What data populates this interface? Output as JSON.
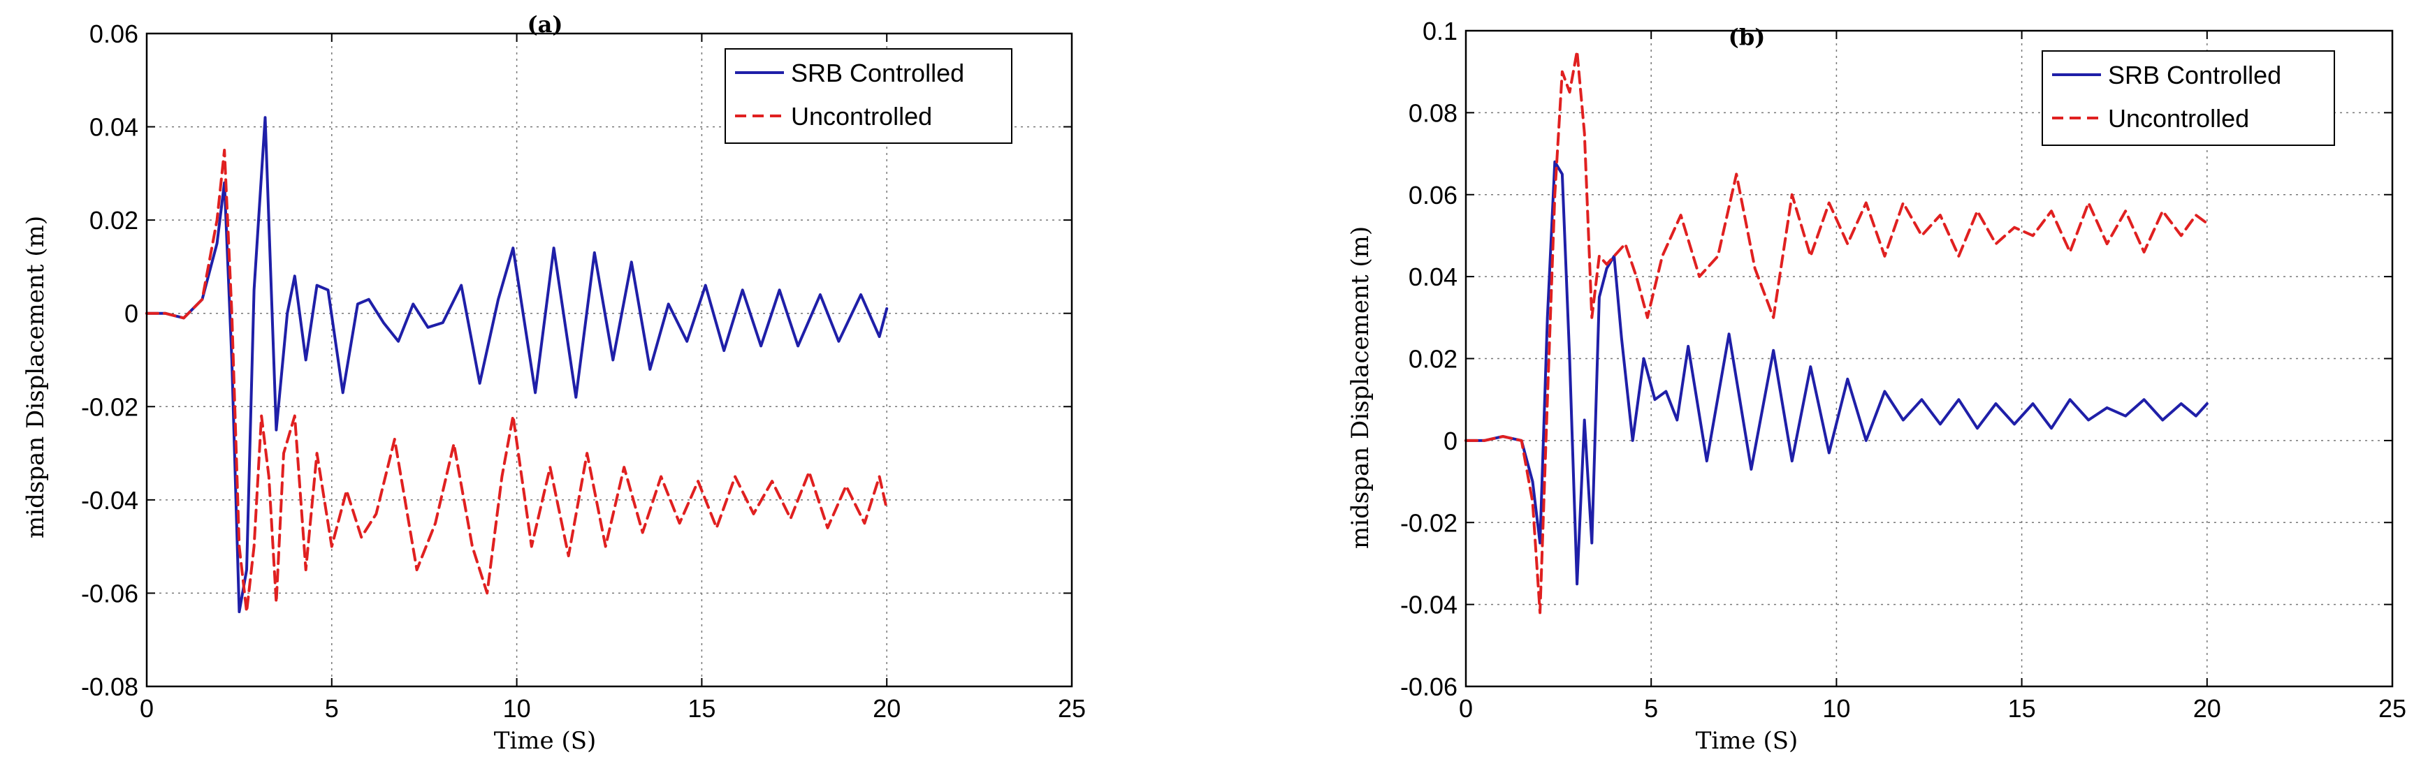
{
  "chart_data": [
    {
      "type": "line",
      "title": "(a)",
      "xlabel": "Time (S)",
      "ylabel": "midspan Displacement (m)",
      "xlim": [
        0,
        25
      ],
      "ylim": [
        -0.08,
        0.06
      ],
      "xticks": [
        0,
        5,
        10,
        15,
        20,
        25
      ],
      "yticks": [
        -0.08,
        -0.06,
        -0.04,
        -0.02,
        0,
        0.02,
        0.04,
        0.06
      ],
      "xtick_labels": [
        "0",
        "5",
        "10",
        "15",
        "20",
        "25"
      ],
      "ytick_labels": [
        "-0.08",
        "-0.06",
        "-0.04",
        "-0.02",
        "0",
        "0.02",
        "0.04",
        "0.06"
      ],
      "grid": true,
      "legend_position": "top-right",
      "series": [
        {
          "name": "SRB Controlled",
          "color": "#1f1fa8",
          "style": "solid",
          "points": [
            [
              0,
              0
            ],
            [
              0.5,
              0
            ],
            [
              1,
              -0.001
            ],
            [
              1.5,
              0.003
            ],
            [
              1.9,
              0.015
            ],
            [
              2.1,
              0.028
            ],
            [
              2.3,
              -0.01
            ],
            [
              2.5,
              -0.064
            ],
            [
              2.7,
              -0.055
            ],
            [
              2.9,
              0.005
            ],
            [
              3.2,
              0.042
            ],
            [
              3.5,
              -0.025
            ],
            [
              3.8,
              0
            ],
            [
              4.0,
              0.008
            ],
            [
              4.3,
              -0.01
            ],
            [
              4.6,
              0.006
            ],
            [
              4.9,
              0.005
            ],
            [
              5.3,
              -0.017
            ],
            [
              5.7,
              0.002
            ],
            [
              6.0,
              0.003
            ],
            [
              6.4,
              -0.002
            ],
            [
              6.8,
              -0.006
            ],
            [
              7.2,
              0.002
            ],
            [
              7.6,
              -0.003
            ],
            [
              8.0,
              -0.002
            ],
            [
              8.5,
              0.006
            ],
            [
              9.0,
              -0.015
            ],
            [
              9.5,
              0.003
            ],
            [
              9.9,
              0.014
            ],
            [
              10.5,
              -0.017
            ],
            [
              11.0,
              0.014
            ],
            [
              11.6,
              -0.018
            ],
            [
              12.1,
              0.013
            ],
            [
              12.6,
              -0.01
            ],
            [
              13.1,
              0.011
            ],
            [
              13.6,
              -0.012
            ],
            [
              14.1,
              0.002
            ],
            [
              14.6,
              -0.006
            ],
            [
              15.1,
              0.006
            ],
            [
              15.6,
              -0.008
            ],
            [
              16.1,
              0.005
            ],
            [
              16.6,
              -0.007
            ],
            [
              17.1,
              0.005
            ],
            [
              17.6,
              -0.007
            ],
            [
              18.2,
              0.004
            ],
            [
              18.7,
              -0.006
            ],
            [
              19.3,
              0.004
            ],
            [
              19.8,
              -0.005
            ],
            [
              20,
              0.001
            ]
          ]
        },
        {
          "name": "Uncontrolled",
          "color": "#e02020",
          "style": "dashed",
          "points": [
            [
              0,
              0
            ],
            [
              0.5,
              0
            ],
            [
              1,
              -0.001
            ],
            [
              1.5,
              0.003
            ],
            [
              1.9,
              0.02
            ],
            [
              2.1,
              0.035
            ],
            [
              2.3,
              0
            ],
            [
              2.5,
              -0.05
            ],
            [
              2.7,
              -0.064
            ],
            [
              2.9,
              -0.05
            ],
            [
              3.1,
              -0.022
            ],
            [
              3.3,
              -0.035
            ],
            [
              3.5,
              -0.062
            ],
            [
              3.7,
              -0.03
            ],
            [
              4.0,
              -0.022
            ],
            [
              4.3,
              -0.055
            ],
            [
              4.6,
              -0.03
            ],
            [
              5.0,
              -0.05
            ],
            [
              5.4,
              -0.038
            ],
            [
              5.8,
              -0.048
            ],
            [
              6.2,
              -0.043
            ],
            [
              6.7,
              -0.027
            ],
            [
              7.3,
              -0.055
            ],
            [
              7.8,
              -0.045
            ],
            [
              8.3,
              -0.028
            ],
            [
              8.8,
              -0.05
            ],
            [
              9.2,
              -0.06
            ],
            [
              9.6,
              -0.035
            ],
            [
              9.9,
              -0.022
            ],
            [
              10.4,
              -0.05
            ],
            [
              10.9,
              -0.033
            ],
            [
              11.4,
              -0.052
            ],
            [
              11.9,
              -0.03
            ],
            [
              12.4,
              -0.05
            ],
            [
              12.9,
              -0.033
            ],
            [
              13.4,
              -0.047
            ],
            [
              13.9,
              -0.035
            ],
            [
              14.4,
              -0.045
            ],
            [
              14.9,
              -0.036
            ],
            [
              15.4,
              -0.046
            ],
            [
              15.9,
              -0.035
            ],
            [
              16.4,
              -0.043
            ],
            [
              16.9,
              -0.036
            ],
            [
              17.4,
              -0.044
            ],
            [
              17.9,
              -0.034
            ],
            [
              18.4,
              -0.046
            ],
            [
              18.9,
              -0.037
            ],
            [
              19.4,
              -0.045
            ],
            [
              19.8,
              -0.035
            ],
            [
              20,
              -0.042
            ]
          ]
        }
      ]
    },
    {
      "type": "line",
      "title": "(b)",
      "xlabel": "Time (S)",
      "ylabel": "midspan Displacement (m)",
      "xlim": [
        0,
        25
      ],
      "ylim": [
        -0.06,
        0.1
      ],
      "xticks": [
        0,
        5,
        10,
        15,
        20,
        25
      ],
      "yticks": [
        -0.06,
        -0.04,
        -0.02,
        0,
        0.02,
        0.04,
        0.06,
        0.08,
        0.1
      ],
      "xtick_labels": [
        "0",
        "5",
        "10",
        "15",
        "20",
        "25"
      ],
      "ytick_labels": [
        "-0.06",
        "-0.04",
        "-0.02",
        "0",
        "0.02",
        "0.04",
        "0.06",
        "0.08",
        "0.1"
      ],
      "grid": true,
      "legend_position": "top-right",
      "series": [
        {
          "name": "SRB Controlled",
          "color": "#1f1fa8",
          "style": "solid",
          "points": [
            [
              0,
              0
            ],
            [
              0.5,
              0
            ],
            [
              1,
              0.001
            ],
            [
              1.5,
              0
            ],
            [
              1.8,
              -0.01
            ],
            [
              2.0,
              -0.025
            ],
            [
              2.2,
              0.03
            ],
            [
              2.4,
              0.068
            ],
            [
              2.6,
              0.065
            ],
            [
              2.8,
              0.02
            ],
            [
              3.0,
              -0.035
            ],
            [
              3.2,
              0.005
            ],
            [
              3.4,
              -0.025
            ],
            [
              3.6,
              0.035
            ],
            [
              3.8,
              0.042
            ],
            [
              4.0,
              0.045
            ],
            [
              4.2,
              0.025
            ],
            [
              4.5,
              0
            ],
            [
              4.8,
              0.02
            ],
            [
              5.1,
              0.01
            ],
            [
              5.4,
              0.012
            ],
            [
              5.7,
              0.005
            ],
            [
              6.0,
              0.023
            ],
            [
              6.5,
              -0.005
            ],
            [
              7.1,
              0.026
            ],
            [
              7.7,
              -0.007
            ],
            [
              8.3,
              0.022
            ],
            [
              8.8,
              -0.005
            ],
            [
              9.3,
              0.018
            ],
            [
              9.8,
              -0.003
            ],
            [
              10.3,
              0.015
            ],
            [
              10.8,
              0
            ],
            [
              11.3,
              0.012
            ],
            [
              11.8,
              0.005
            ],
            [
              12.3,
              0.01
            ],
            [
              12.8,
              0.004
            ],
            [
              13.3,
              0.01
            ],
            [
              13.8,
              0.003
            ],
            [
              14.3,
              0.009
            ],
            [
              14.8,
              0.004
            ],
            [
              15.3,
              0.009
            ],
            [
              15.8,
              0.003
            ],
            [
              16.3,
              0.01
            ],
            [
              16.8,
              0.005
            ],
            [
              17.3,
              0.008
            ],
            [
              17.8,
              0.006
            ],
            [
              18.3,
              0.01
            ],
            [
              18.8,
              0.005
            ],
            [
              19.3,
              0.009
            ],
            [
              19.7,
              0.006
            ],
            [
              20,
              0.009
            ]
          ]
        },
        {
          "name": "Uncontrolled",
          "color": "#e02020",
          "style": "dashed",
          "points": [
            [
              0,
              0
            ],
            [
              0.5,
              0
            ],
            [
              1,
              0.001
            ],
            [
              1.5,
              0
            ],
            [
              1.8,
              -0.015
            ],
            [
              2.0,
              -0.042
            ],
            [
              2.2,
              0.01
            ],
            [
              2.4,
              0.06
            ],
            [
              2.6,
              0.09
            ],
            [
              2.8,
              0.085
            ],
            [
              3.0,
              0.095
            ],
            [
              3.2,
              0.075
            ],
            [
              3.4,
              0.03
            ],
            [
              3.6,
              0.045
            ],
            [
              3.8,
              0.043
            ],
            [
              4.0,
              0.045
            ],
            [
              4.3,
              0.048
            ],
            [
              4.6,
              0.04
            ],
            [
              4.9,
              0.03
            ],
            [
              5.3,
              0.045
            ],
            [
              5.8,
              0.055
            ],
            [
              6.3,
              0.04
            ],
            [
              6.8,
              0.045
            ],
            [
              7.3,
              0.065
            ],
            [
              7.8,
              0.042
            ],
            [
              8.3,
              0.03
            ],
            [
              8.8,
              0.06
            ],
            [
              9.3,
              0.045
            ],
            [
              9.8,
              0.058
            ],
            [
              10.3,
              0.048
            ],
            [
              10.8,
              0.058
            ],
            [
              11.3,
              0.045
            ],
            [
              11.8,
              0.058
            ],
            [
              12.3,
              0.05
            ],
            [
              12.8,
              0.055
            ],
            [
              13.3,
              0.045
            ],
            [
              13.8,
              0.056
            ],
            [
              14.3,
              0.048
            ],
            [
              14.8,
              0.052
            ],
            [
              15.3,
              0.05
            ],
            [
              15.8,
              0.056
            ],
            [
              16.3,
              0.046
            ],
            [
              16.8,
              0.058
            ],
            [
              17.3,
              0.048
            ],
            [
              17.8,
              0.056
            ],
            [
              18.3,
              0.046
            ],
            [
              18.8,
              0.056
            ],
            [
              19.3,
              0.05
            ],
            [
              19.7,
              0.055
            ],
            [
              20,
              0.053
            ]
          ]
        }
      ]
    }
  ]
}
